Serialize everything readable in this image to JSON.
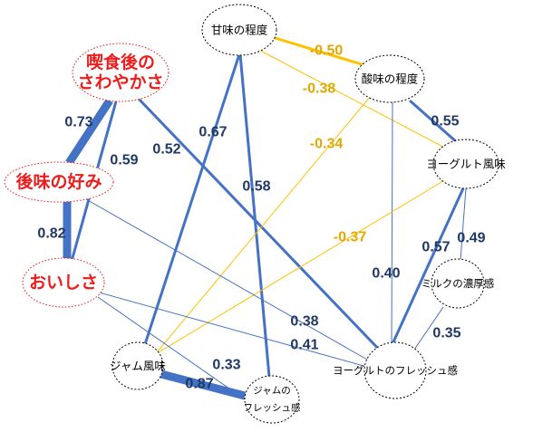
{
  "colors": {
    "positive": "#4472c4",
    "negative": "#ffc000",
    "positive_text": "#1f3864",
    "negative_text": "#e0a800",
    "key_text": "#ee1c1c",
    "key_outline": "#ee1c1c",
    "node_outline": "#000000"
  },
  "nodes": [
    {
      "id": "n_aftertaste_fresh",
      "name": "node-aftertaste-freshness",
      "lines": [
        "喫食後の",
        "さわやかさ"
      ],
      "key": true
    },
    {
      "id": "n_aftertaste_pref",
      "name": "node-aftertaste-preference",
      "lines": [
        "後味の好み"
      ],
      "key": true
    },
    {
      "id": "n_tasty",
      "name": "node-deliciousness",
      "lines": [
        "おいしさ"
      ],
      "key": true
    },
    {
      "id": "n_sweet",
      "name": "node-sweetness-level",
      "lines": [
        "甘味の程度"
      ],
      "key": false
    },
    {
      "id": "n_sour",
      "name": "node-sourness-level",
      "lines": [
        "酸味の程度"
      ],
      "key": false
    },
    {
      "id": "n_yog_flavor",
      "name": "node-yogurt-flavor",
      "lines": [
        "ヨーグルト風味"
      ],
      "key": false
    },
    {
      "id": "n_milk",
      "name": "node-milk-richness",
      "lines": [
        "ミルクの濃厚感"
      ],
      "key": false
    },
    {
      "id": "n_yog_fresh",
      "name": "node-yogurt-freshness",
      "lines": [
        "ヨーグルトのフレッシュ感"
      ],
      "key": false
    },
    {
      "id": "n_jam_flavor",
      "name": "node-jam-flavor",
      "lines": [
        "ジャム風味"
      ],
      "key": false
    },
    {
      "id": "n_jam_fresh",
      "name": "node-jam-freshness",
      "lines": [
        "ジャムの",
        "フレッシュ感"
      ],
      "key": false
    }
  ],
  "edges": [
    {
      "from": "n_aftertaste_fresh",
      "to": "n_aftertaste_pref",
      "value": "0.73",
      "sign": "positive",
      "strength": 0.73
    },
    {
      "from": "n_aftertaste_pref",
      "to": "n_tasty",
      "value": "0.82",
      "sign": "positive",
      "strength": 0.82
    },
    {
      "from": "n_aftertaste_fresh",
      "to": "n_tasty",
      "value": "0.59",
      "sign": "positive",
      "strength": 0.59
    },
    {
      "from": "n_aftertaste_fresh",
      "to": "n_yog_fresh",
      "value": "0.52",
      "sign": "positive",
      "strength": 0.52
    },
    {
      "from": "n_sweet",
      "to": "n_jam_flavor",
      "value": "0.67",
      "sign": "positive",
      "strength": 0.67
    },
    {
      "from": "n_sweet",
      "to": "n_jam_fresh",
      "value": "0.58",
      "sign": "positive",
      "strength": 0.58
    },
    {
      "from": "n_sweet",
      "to": "n_sour",
      "value": "-0.50",
      "sign": "negative",
      "strength": 0.5
    },
    {
      "from": "n_sweet",
      "to": "n_yog_flavor",
      "value": "-0.38",
      "sign": "negative",
      "strength": 0.38
    },
    {
      "from": "n_sour",
      "to": "n_jam_flavor",
      "value": "-0.34",
      "sign": "negative",
      "strength": 0.34
    },
    {
      "from": "n_sour",
      "to": "n_yog_flavor",
      "value": "0.55",
      "sign": "positive",
      "strength": 0.55
    },
    {
      "from": "n_sour",
      "to": "n_yog_fresh",
      "value": "0.40",
      "sign": "positive",
      "strength": 0.4
    },
    {
      "from": "n_yog_flavor",
      "to": "n_jam_flavor",
      "value": "-0.37",
      "sign": "negative",
      "strength": 0.37
    },
    {
      "from": "n_yog_flavor",
      "to": "n_yog_fresh",
      "value": "0.57",
      "sign": "positive",
      "strength": 0.57
    },
    {
      "from": "n_yog_flavor",
      "to": "n_milk",
      "value": "0.49",
      "sign": "positive",
      "strength": 0.49
    },
    {
      "from": "n_milk",
      "to": "n_yog_fresh",
      "value": "0.35",
      "sign": "positive",
      "strength": 0.35
    },
    {
      "from": "n_aftertaste_pref",
      "to": "n_yog_fresh",
      "value": "0.38",
      "sign": "positive",
      "strength": 0.38
    },
    {
      "from": "n_tasty",
      "to": "n_yog_fresh",
      "value": "0.41",
      "sign": "positive",
      "strength": 0.41
    },
    {
      "from": "n_tasty",
      "to": "n_jam_fresh",
      "value": "0.33",
      "sign": "positive",
      "strength": 0.33
    },
    {
      "from": "n_jam_flavor",
      "to": "n_jam_fresh",
      "value": "0.87",
      "sign": "positive",
      "strength": 0.87
    }
  ]
}
